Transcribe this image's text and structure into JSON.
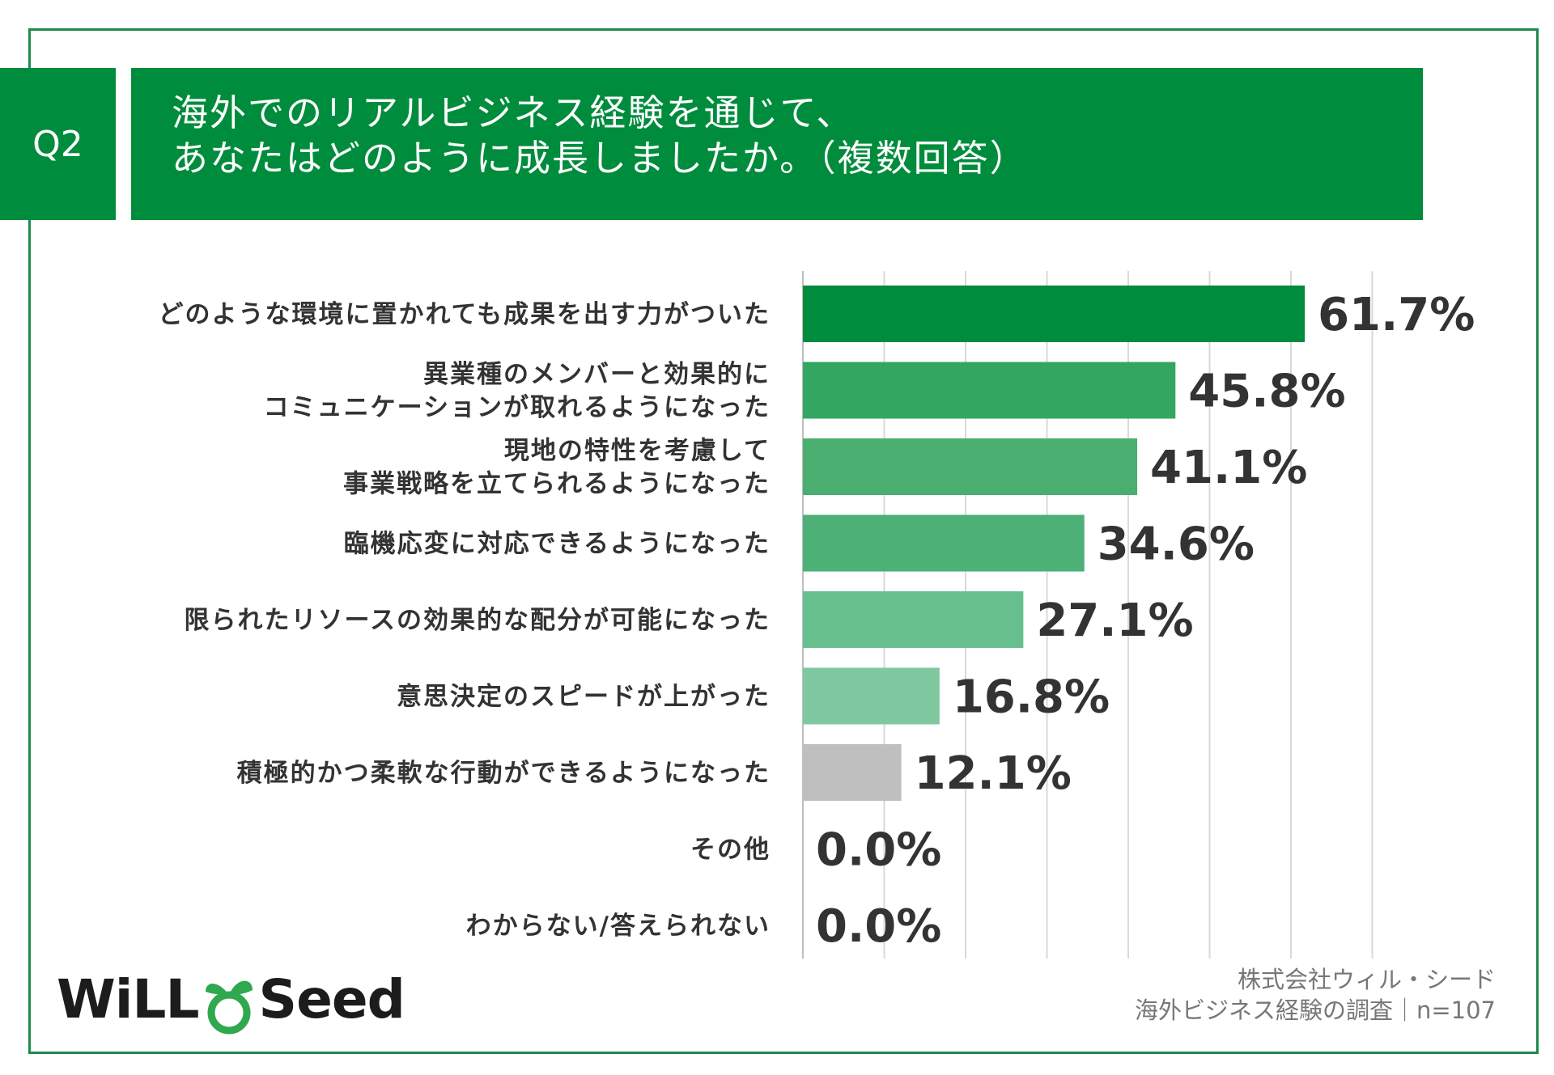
{
  "header": {
    "question_no": "Q2",
    "title_line1": "海外でのリアルビジネス経験を通じて、",
    "title_line2": "あなたはどのように成長しましたか。（複数回答）"
  },
  "chart_data": {
    "type": "bar",
    "orientation": "horizontal",
    "categories": [
      [
        "どのような環境に置かれても成果を出す力がついた"
      ],
      [
        "異業種のメンバーと効果的に",
        "コミュニケーションが取れるようになった"
      ],
      [
        "現地の特性を考慮して",
        "事業戦略を立てられるようになった"
      ],
      [
        "臨機応変に対応できるようになった"
      ],
      [
        "限られたリソースの効果的な配分が可能になった"
      ],
      [
        "意思決定のスピードが上がった"
      ],
      [
        "積極的かつ柔軟な行動ができるようになった"
      ],
      [
        "その他"
      ],
      [
        "わからない/答えられない"
      ]
    ],
    "values": [
      61.7,
      45.8,
      41.1,
      34.6,
      27.1,
      16.8,
      12.1,
      0.0,
      0.0
    ],
    "value_labels": [
      "61.7%",
      "45.8%",
      "41.1%",
      "34.6%",
      "27.1%",
      "16.8%",
      "12.1%",
      "0.0%",
      "0.0%"
    ],
    "bar_colors": [
      "#008c3d",
      "#33a661",
      "#4aae71",
      "#4cb077",
      "#67bf8e",
      "#80c8a0",
      "#bfbfbf",
      "#bfbfbf",
      "#bfbfbf"
    ],
    "xlim": [
      0,
      80
    ],
    "x_gridlines": [
      0,
      10,
      20,
      30,
      40,
      50,
      60,
      70
    ],
    "grid": true,
    "unit": "%"
  },
  "footer": {
    "logo_left": "WiLL",
    "logo_right": "Seed",
    "source_line1": "株式会社ウィル・シード",
    "source_line2": "海外ビジネス経験の調査｜n=107"
  },
  "colors": {
    "brand_green": "#008c3d",
    "frame": "#1f8a4c",
    "text": "#333333",
    "grid": "#d9d9d9"
  }
}
